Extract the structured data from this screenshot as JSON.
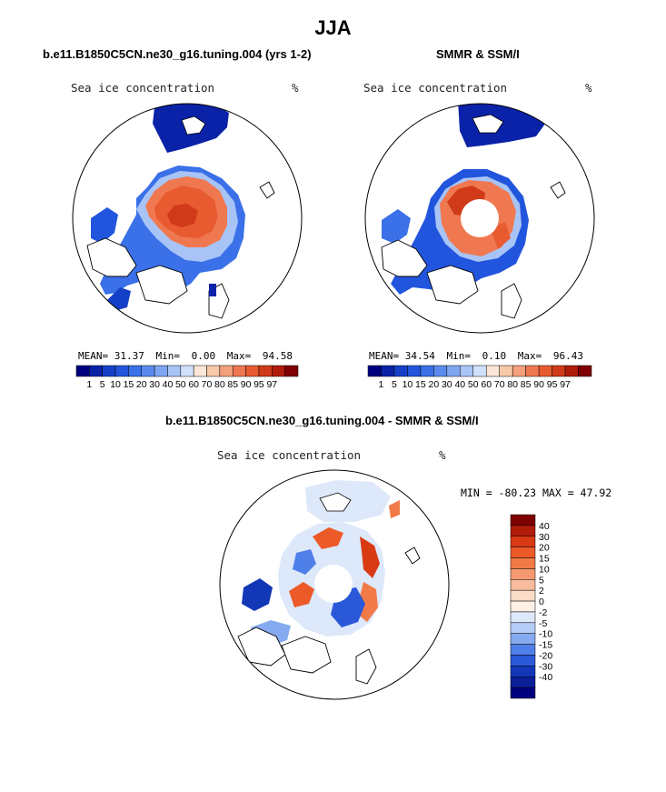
{
  "title": "JJA",
  "colors": {
    "land": "#ffffff",
    "outline": "#000000",
    "ocean_low": "#ffffff",
    "pole_hole": "#ffffff"
  },
  "chart_data": [
    {
      "type": "heatmap",
      "panel": "model",
      "title": "b.e11.B1850C5CN.ne30_g16.tuning.004 (yrs 1-2)",
      "variable": "Sea ice concentration",
      "units": "%",
      "stats": {
        "mean_label": "MEAN=",
        "mean": "31.37",
        "min_label": "Min=",
        "min": "0.00",
        "max_label": "Max=",
        "max": "94.58"
      },
      "levels": [
        "1",
        "5",
        "10",
        "15",
        "20",
        "30",
        "40",
        "50",
        "60",
        "70",
        "80",
        "85",
        "90",
        "95",
        "97"
      ],
      "colors": [
        "#00007f",
        "#0a22a8",
        "#1440c8",
        "#2255dd",
        "#3a70e8",
        "#5a8aee",
        "#7fa6f2",
        "#a8c4f6",
        "#d0e0fa",
        "#fbe6d8",
        "#f8c8a8",
        "#f4a07c",
        "#f07850",
        "#e85a30",
        "#d03a18",
        "#b01c0a",
        "#7f0000"
      ]
    },
    {
      "type": "heatmap",
      "panel": "obs",
      "title": "SMMR & SSM/I",
      "variable": "Sea ice concentration",
      "units": "%",
      "stats": {
        "mean_label": "MEAN=",
        "mean": "34.54",
        "min_label": "Min=",
        "min": "0.10",
        "max_label": "Max=",
        "max": "96.43"
      },
      "levels": [
        "1",
        "5",
        "10",
        "15",
        "20",
        "30",
        "40",
        "50",
        "60",
        "70",
        "80",
        "85",
        "90",
        "95",
        "97"
      ],
      "colors": [
        "#00007f",
        "#0a22a8",
        "#1440c8",
        "#2255dd",
        "#3a70e8",
        "#5a8aee",
        "#7fa6f2",
        "#a8c4f6",
        "#d0e0fa",
        "#fbe6d8",
        "#f8c8a8",
        "#f4a07c",
        "#f07850",
        "#e85a30",
        "#d03a18",
        "#b01c0a",
        "#7f0000"
      ]
    },
    {
      "type": "heatmap",
      "panel": "difference",
      "title": "b.e11.B1850C5CN.ne30_g16.tuning.004 - SMMR & SSM/I",
      "variable": "Sea ice concentration",
      "units": "%",
      "minmax_text": "MIN = -80.23 MAX =  47.92",
      "min": -80.23,
      "max": 47.92,
      "levels": [
        "40",
        "30",
        "20",
        "15",
        "10",
        "5",
        "2",
        "0",
        "-2",
        "-5",
        "-10",
        "-15",
        "-20",
        "-30",
        "-40"
      ],
      "colors": [
        "#7f0000",
        "#b01c0a",
        "#d83a14",
        "#ec5a28",
        "#f27a48",
        "#f59a70",
        "#f8bc9c",
        "#fbdcc8",
        "#fdf0e6",
        "#dde8fa",
        "#b4ccf6",
        "#86aaf0",
        "#4f7fe8",
        "#2a58d8",
        "#1238b8",
        "#0a1f98",
        "#00007f"
      ]
    }
  ]
}
